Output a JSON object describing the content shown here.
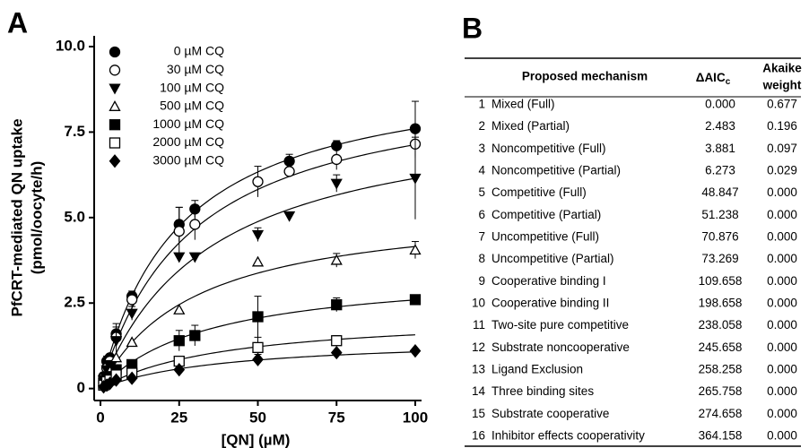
{
  "panel_labels": [
    "A",
    "B"
  ],
  "chart_data": {
    "type": "scatter",
    "x_label": "[QN] (µM)",
    "y_label": [
      "PfCRT-mediated QN uptake",
      "(pmol/oocyte/h)"
    ],
    "x": [
      1,
      2,
      3,
      5,
      10,
      25,
      30,
      50,
      60,
      75,
      100
    ],
    "xlim": [
      -2,
      102
    ],
    "xticks": [
      0,
      25,
      50,
      75,
      100
    ],
    "ylim": [
      -0.35,
      10
    ],
    "yticks": [
      0,
      2.5,
      {
        "value": 5,
        "label": "5.0"
      },
      7.5,
      {
        "value": 10,
        "label": "10.0"
      }
    ],
    "legend": "upper left",
    "series": [
      {
        "name": "0 µM CQ",
        "color": "#000000",
        "marker": "circle",
        "filled": true,
        "values": [
          0.35,
          0.8,
          0.9,
          1.6,
          2.7,
          4.8,
          5.25,
          null,
          6.65,
          7.1,
          7.6
        ],
        "errors": [
          0.1,
          0.15,
          null,
          0.2,
          0.15,
          0.5,
          0.25,
          null,
          0.2,
          0.15,
          0.8
        ],
        "curve": {
          "vmax": 9.5,
          "km": 25
        }
      },
      {
        "name": "30 µM CQ",
        "color": "#000000",
        "marker": "circle",
        "filled": false,
        "values": [
          0.3,
          0.6,
          0.8,
          1.5,
          2.6,
          4.6,
          4.8,
          6.05,
          6.35,
          6.7,
          7.15
        ],
        "errors": [
          null,
          0.1,
          null,
          0.2,
          0.2,
          0.7,
          0.45,
          0.45,
          null,
          0.3,
          0.4
        ],
        "curve": {
          "vmax": 9.2,
          "km": 29
        }
      },
      {
        "name": "100 µM CQ",
        "color": "#000000",
        "marker": "triangle-down",
        "filled": true,
        "values": [
          0.25,
          0.55,
          0.7,
          1.4,
          2.2,
          3.85,
          3.85,
          4.5,
          5.05,
          6.0,
          6.15
        ],
        "errors": [
          null,
          null,
          null,
          0.5,
          0.2,
          null,
          null,
          0.2,
          0.1,
          0.25,
          1.2
        ],
        "curve": {
          "vmax": 8.3,
          "km": 35
        }
      },
      {
        "name": "500 µM CQ",
        "color": "#000000",
        "marker": "triangle-up",
        "filled": false,
        "values": [
          0.2,
          0.4,
          0.5,
          0.9,
          1.35,
          2.3,
          null,
          3.7,
          null,
          3.75,
          4.05
        ],
        "errors": [
          null,
          null,
          null,
          null,
          null,
          null,
          null,
          null,
          null,
          0.2,
          0.25
        ],
        "curve": {
          "vmax": 5.4,
          "km": 30
        }
      },
      {
        "name": "1000 µM CQ",
        "color": "#000000",
        "marker": "square",
        "filled": true,
        "values": [
          0.15,
          0.3,
          0.35,
          0.55,
          0.7,
          1.4,
          1.55,
          2.1,
          null,
          2.45,
          2.6
        ],
        "errors": [
          null,
          null,
          null,
          null,
          null,
          0.3,
          0.3,
          0.6,
          null,
          0.2,
          null
        ],
        "curve": {
          "vmax": 3.5,
          "km": 35
        }
      },
      {
        "name": "2000 µM CQ",
        "color": "#000000",
        "marker": "square",
        "filled": false,
        "values": [
          0.1,
          0.2,
          0.25,
          0.4,
          0.45,
          0.8,
          null,
          1.2,
          null,
          1.4,
          null
        ],
        "errors": [
          null,
          null,
          null,
          null,
          null,
          null,
          null,
          0.3,
          null,
          0.15,
          null
        ],
        "curve": {
          "vmax": 2.2,
          "km": 40
        }
      },
      {
        "name": "3000 µM CQ",
        "color": "#000000",
        "marker": "diamond",
        "filled": true,
        "values": [
          0.05,
          0.1,
          0.15,
          0.25,
          0.3,
          0.55,
          null,
          0.85,
          null,
          1.05,
          1.1
        ],
        "errors": [
          null,
          null,
          null,
          null,
          null,
          null,
          null,
          0.15,
          null,
          null,
          null
        ],
        "curve": {
          "vmax": 1.5,
          "km": 40
        }
      }
    ]
  },
  "table": {
    "header": {
      "mechanism": "Proposed mechanism",
      "aic": {
        "main": "ΔAIC",
        "sub": "c"
      },
      "weight": [
        "Akaike",
        "weight"
      ]
    },
    "rows": [
      [
        "1",
        "Mixed (Full)",
        "0.000",
        "0.677"
      ],
      [
        "2",
        "Mixed (Partial)",
        "2.483",
        "0.196"
      ],
      [
        "3",
        "Noncompetitive (Full)",
        "3.881",
        "0.097"
      ],
      [
        "4",
        "Noncompetitive (Partial)",
        "6.273",
        "0.029"
      ],
      [
        "5",
        "Competitive (Full)",
        "48.847",
        "0.000"
      ],
      [
        "6",
        "Competitive (Partial)",
        "51.238",
        "0.000"
      ],
      [
        "7",
        "Uncompetitive (Full)",
        "70.876",
        "0.000"
      ],
      [
        "8",
        "Uncompetitive (Partial)",
        "73.269",
        "0.000"
      ],
      [
        "9",
        "Cooperative binding I",
        "109.658",
        "0.000"
      ],
      [
        "10",
        "Cooperative binding II",
        "198.658",
        "0.000"
      ],
      [
        "11",
        "Two-site pure competitive",
        "238.058",
        "0.000"
      ],
      [
        "12",
        "Substrate noncooperative",
        "245.658",
        "0.000"
      ],
      [
        "13",
        "Ligand Exclusion",
        "258.258",
        "0.000"
      ],
      [
        "14",
        "Three binding sites",
        "265.758",
        "0.000"
      ],
      [
        "15",
        "Substrate cooperative",
        "274.658",
        "0.000"
      ],
      [
        "16",
        "Inhibitor effects cooperativity",
        "364.158",
        "0.000"
      ]
    ]
  }
}
